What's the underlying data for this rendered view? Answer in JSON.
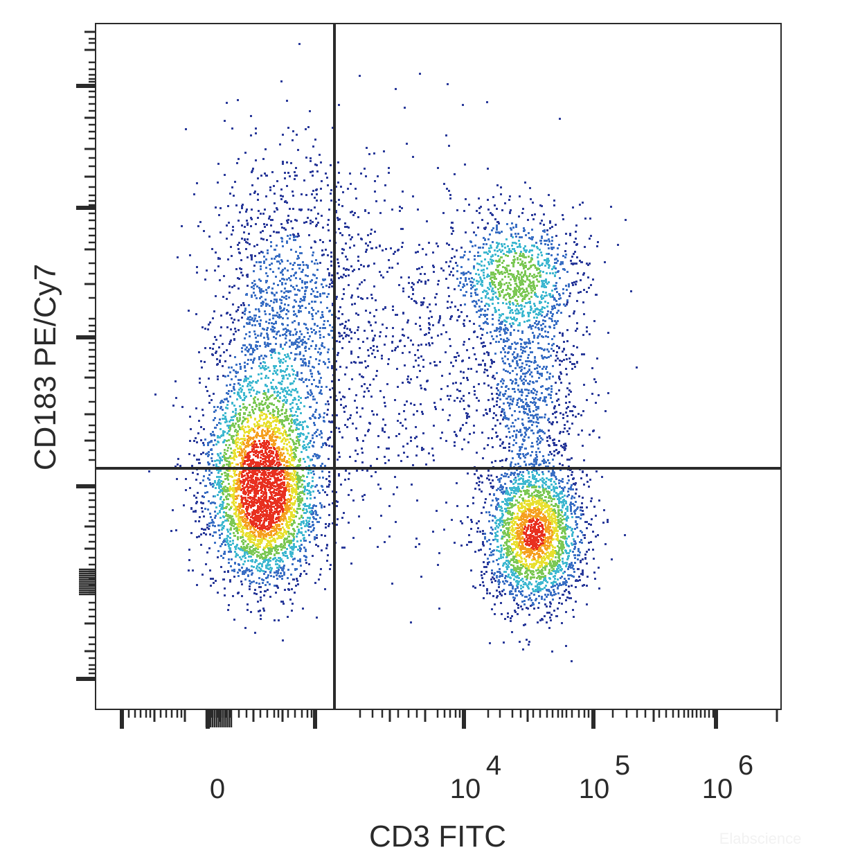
{
  "chart_data": {
    "type": "scatter",
    "style": "flow-cytometry-density-dot-plot",
    "xlabel": "CD3 FITC",
    "ylabel": "CD183 PE/Cy7",
    "x_scale": "biexponential",
    "y_scale": "biexponential",
    "x_tick_labels": [
      {
        "base": "0",
        "exp": ""
      },
      {
        "base": "10",
        "exp": "4"
      },
      {
        "base": "10",
        "exp": "5"
      },
      {
        "base": "10",
        "exp": "6"
      }
    ],
    "quadrant_gate": {
      "x_position": "between 0 and 10^4",
      "y_position": "lower third"
    },
    "populations": [
      {
        "id": "cd3neg_cd183neg",
        "quadrant": "lower-left",
        "density": "high"
      },
      {
        "id": "cd3neg_cd183pos",
        "quadrant": "upper-left",
        "density": "low"
      },
      {
        "id": "cd3pos_cd183neg",
        "quadrant": "lower-right",
        "density": "high"
      },
      {
        "id": "cd3pos_cd183pos",
        "quadrant": "upper-right",
        "density": "medium"
      }
    ],
    "density_colors": [
      "#2a3a9a",
      "#3a6fc4",
      "#3fb8d0",
      "#7cc855",
      "#e8e030",
      "#f5a020",
      "#e83020"
    ],
    "grid": false,
    "legend": "none"
  },
  "watermark": "Elabscience"
}
